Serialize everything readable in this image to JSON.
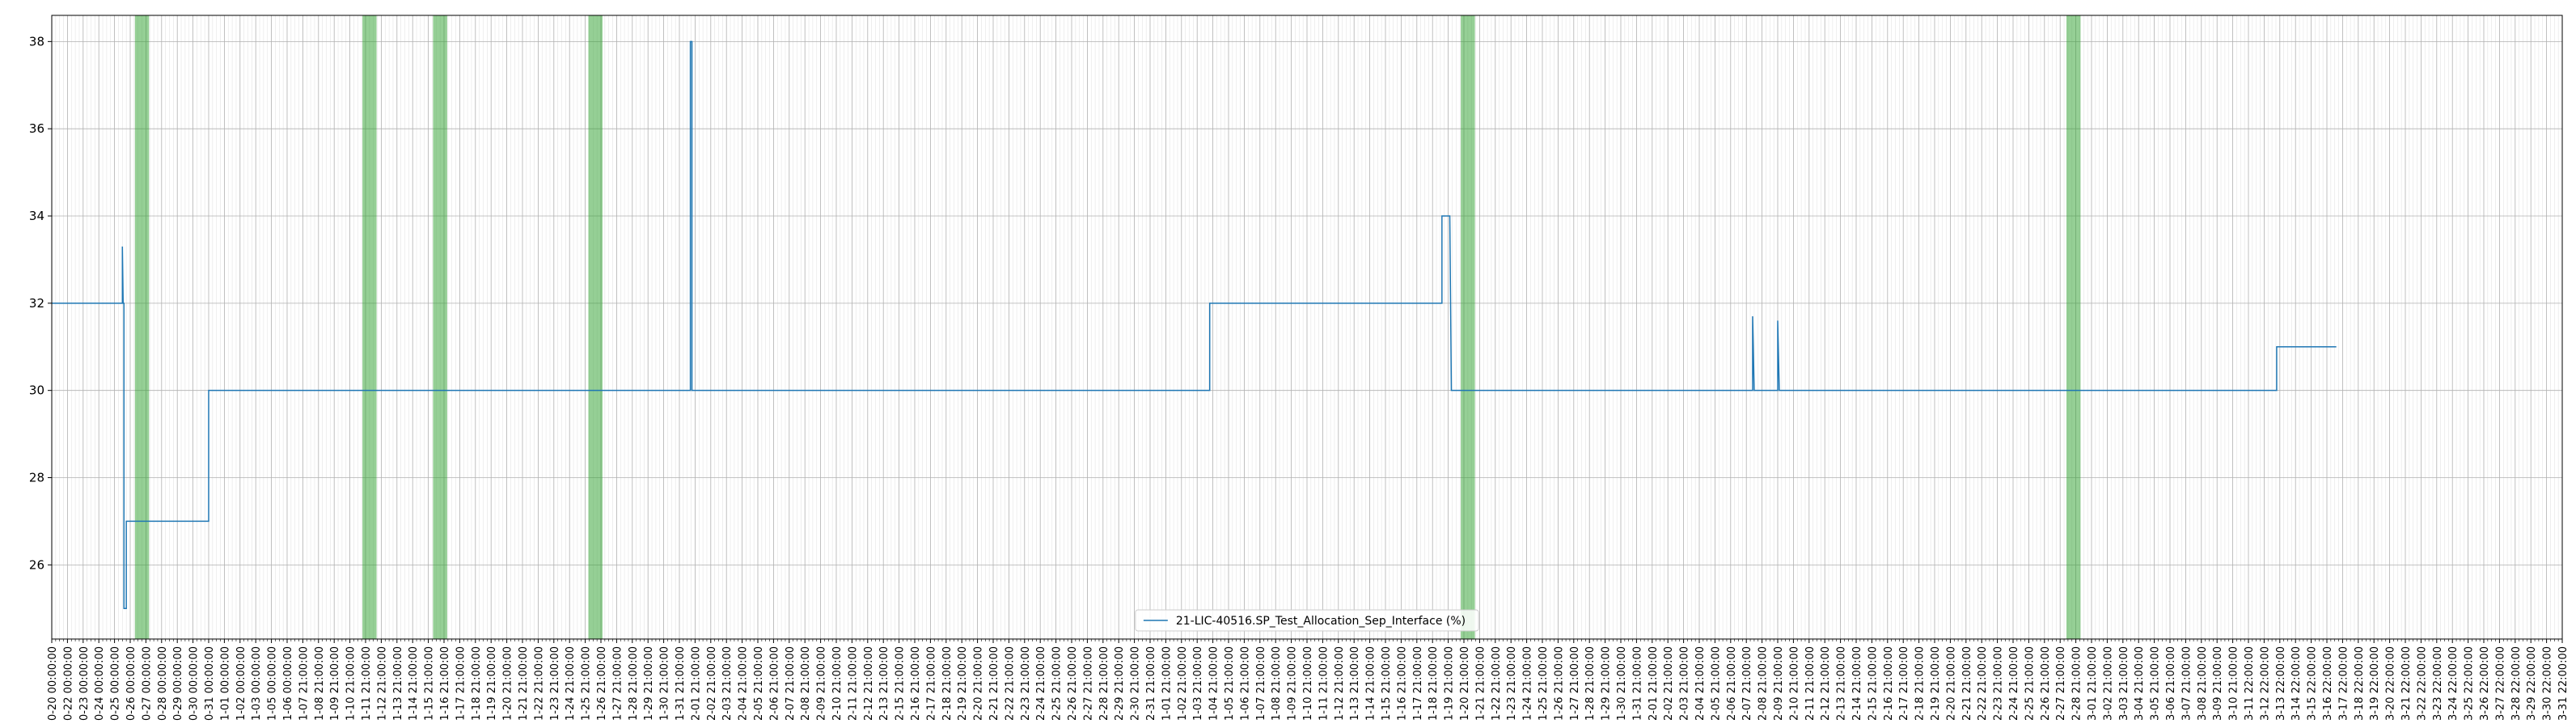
{
  "chart_data": {
    "type": "line",
    "title": "",
    "xlabel": "",
    "ylabel": "",
    "grid": true,
    "legend_position": "lower-center",
    "ylim": [
      24.3,
      38.6
    ],
    "yticks": [
      26,
      28,
      30,
      32,
      34,
      36,
      38
    ],
    "x_tick_labels": [
      "0-20 00:00:00",
      "0-22 00:00:00",
      "0-23 00:00:00",
      "0-24 00:00:00",
      "0-25 00:00:00",
      "0-26 00:00:00",
      "0-27 00:00:00",
      "0-28 00:00:00",
      "0-29 00:00:00",
      "0-30 00:00:00",
      "0-31 00:00:00",
      "1-01 00:00:00",
      "1-02 00:00:00",
      "1-03 00:00:00",
      "1-05 00:00:00",
      "1-06 00:00:00",
      "1-07 21:00:00",
      "1-08 21:00:00",
      "1-09 21:00:00",
      "1-10 21:00:00",
      "1-11 21:00:00",
      "1-12 21:00:00",
      "1-13 21:00:00",
      "1-14 21:00:00",
      "1-15 21:00:00",
      "1-16 21:00:00",
      "1-17 21:00:00",
      "1-18 21:00:00",
      "1-19 21:00:00",
      "1-20 21:00:00",
      "1-21 21:00:00",
      "1-22 21:00:00",
      "1-23 21:00:00",
      "1-24 21:00:00",
      "1-25 21:00:00",
      "1-26 21:00:00",
      "1-27 21:00:00",
      "1-28 21:00:00",
      "1-29 21:00:00",
      "1-30 21:00:00",
      "1-31 21:00:00",
      "2-01 21:00:00",
      "2-02 21:00:00",
      "2-03 21:00:00",
      "2-04 21:00:00",
      "2-05 21:00:00",
      "2-06 21:00:00",
      "2-07 21:00:00",
      "2-08 21:00:00",
      "2-09 21:00:00",
      "2-10 21:00:00",
      "2-11 21:00:00",
      "2-12 21:00:00",
      "2-13 21:00:00",
      "2-15 21:00:00",
      "2-16 21:00:00",
      "2-17 21:00:00",
      "2-18 21:00:00",
      "2-19 21:00:00",
      "2-20 21:00:00",
      "2-21 21:00:00",
      "2-22 21:00:00",
      "2-23 21:00:00",
      "2-24 21:00:00",
      "2-25 21:00:00",
      "2-26 21:00:00",
      "2-27 21:00:00",
      "2-28 21:00:00",
      "2-29 21:00:00",
      "2-30 21:00:00",
      "2-31 21:00:00",
      "1-01 21:00:00",
      "1-02 21:00:00",
      "1-03 21:00:00",
      "1-04 21:00:00",
      "1-05 21:00:00",
      "1-06 21:00:00",
      "1-07 21:00:00",
      "1-08 21:00:00",
      "1-09 21:00:00",
      "1-10 21:00:00",
      "1-11 21:00:00",
      "1-12 21:00:00",
      "1-13 21:00:00",
      "1-14 21:00:00",
      "1-15 21:00:00",
      "1-16 21:00:00",
      "1-17 21:00:00",
      "1-18 21:00:00",
      "1-19 21:00:00",
      "1-20 21:00:00",
      "1-21 21:00:00",
      "1-22 21:00:00",
      "1-23 21:00:00",
      "1-24 21:00:00",
      "1-25 21:00:00",
      "1-26 21:00:00",
      "1-27 21:00:00",
      "1-28 21:00:00",
      "1-29 21:00:00",
      "1-30 21:00:00",
      "1-31 21:00:00",
      "2-01 21:00:00",
      "2-02 21:00:00",
      "2-03 21:00:00",
      "2-04 21:00:00",
      "2-05 21:00:00",
      "2-06 21:00:00",
      "2-07 21:00:00",
      "2-08 21:00:00",
      "2-09 21:00:00",
      "2-10 21:00:00",
      "2-11 21:00:00",
      "2-12 21:00:00",
      "2-13 21:00:00",
      "2-14 21:00:00",
      "2-15 21:00:00",
      "2-16 21:00:00",
      "2-17 21:00:00",
      "2-18 21:00:00",
      "2-19 21:00:00",
      "2-20 21:00:00",
      "2-21 21:00:00",
      "2-22 21:00:00",
      "2-23 21:00:00",
      "2-24 21:00:00",
      "2-25 21:00:00",
      "2-26 21:00:00",
      "2-27 21:00:00",
      "2-28 21:00:00",
      "3-01 21:00:00",
      "3-02 21:00:00",
      "3-03 21:00:00",
      "3-04 21:00:00",
      "3-05 21:00:00",
      "3-06 21:00:00",
      "3-07 21:00:00",
      "3-08 21:00:00",
      "3-09 21:00:00",
      "3-10 21:00:00",
      "3-11 22:00:00",
      "3-12 22:00:00",
      "3-13 22:00:00",
      "3-14 22:00:00",
      "3-15 22:00:00",
      "3-16 22:00:00",
      "3-17 22:00:00",
      "3-18 22:00:00",
      "3-19 22:00:00",
      "3-20 22:00:00",
      "3-21 22:00:00",
      "3-22 22:00:00",
      "3-23 22:00:00",
      "3-24 22:00:00",
      "3-25 22:00:00",
      "3-26 22:00:00",
      "3-27 22:00:00",
      "3-28 22:00:00",
      "3-29 22:00:00",
      "3-30 22:00:00",
      "3-31 22:00:00"
    ],
    "series": [
      {
        "name": "21-LIC-40516.SP_Test_Allocation_Sep_Interface (%)",
        "color": "#1f77b4",
        "points": [
          [
            0,
            32
          ],
          [
            4.5,
            32
          ],
          [
            4.5,
            33.3
          ],
          [
            4.55,
            32
          ],
          [
            4.6,
            32
          ],
          [
            4.6,
            25
          ],
          [
            4.75,
            25
          ],
          [
            4.75,
            27
          ],
          [
            10,
            27
          ],
          [
            10,
            30
          ],
          [
            40.7,
            30
          ],
          [
            40.7,
            38
          ],
          [
            40.8,
            38
          ],
          [
            40.8,
            30
          ],
          [
            73.8,
            30
          ],
          [
            73.8,
            32
          ],
          [
            88.6,
            32
          ],
          [
            88.6,
            34
          ],
          [
            89.1,
            34
          ],
          [
            89.2,
            30
          ],
          [
            108.4,
            30
          ],
          [
            108.4,
            31.7
          ],
          [
            108.5,
            30
          ],
          [
            110,
            30
          ],
          [
            110,
            31.6
          ],
          [
            110.1,
            30
          ],
          [
            141.8,
            30
          ],
          [
            141.8,
            31
          ],
          [
            145.6,
            31
          ]
        ]
      }
    ],
    "highlight_bands": [
      [
        5.3,
        6.2
      ],
      [
        19.8,
        20.7
      ],
      [
        24.3,
        25.2
      ],
      [
        34.2,
        35.1
      ],
      [
        89.8,
        90.7
      ],
      [
        128.4,
        129.3
      ]
    ],
    "band_color": "#2ca02c",
    "minor_x_steps_per_tick": 4
  }
}
